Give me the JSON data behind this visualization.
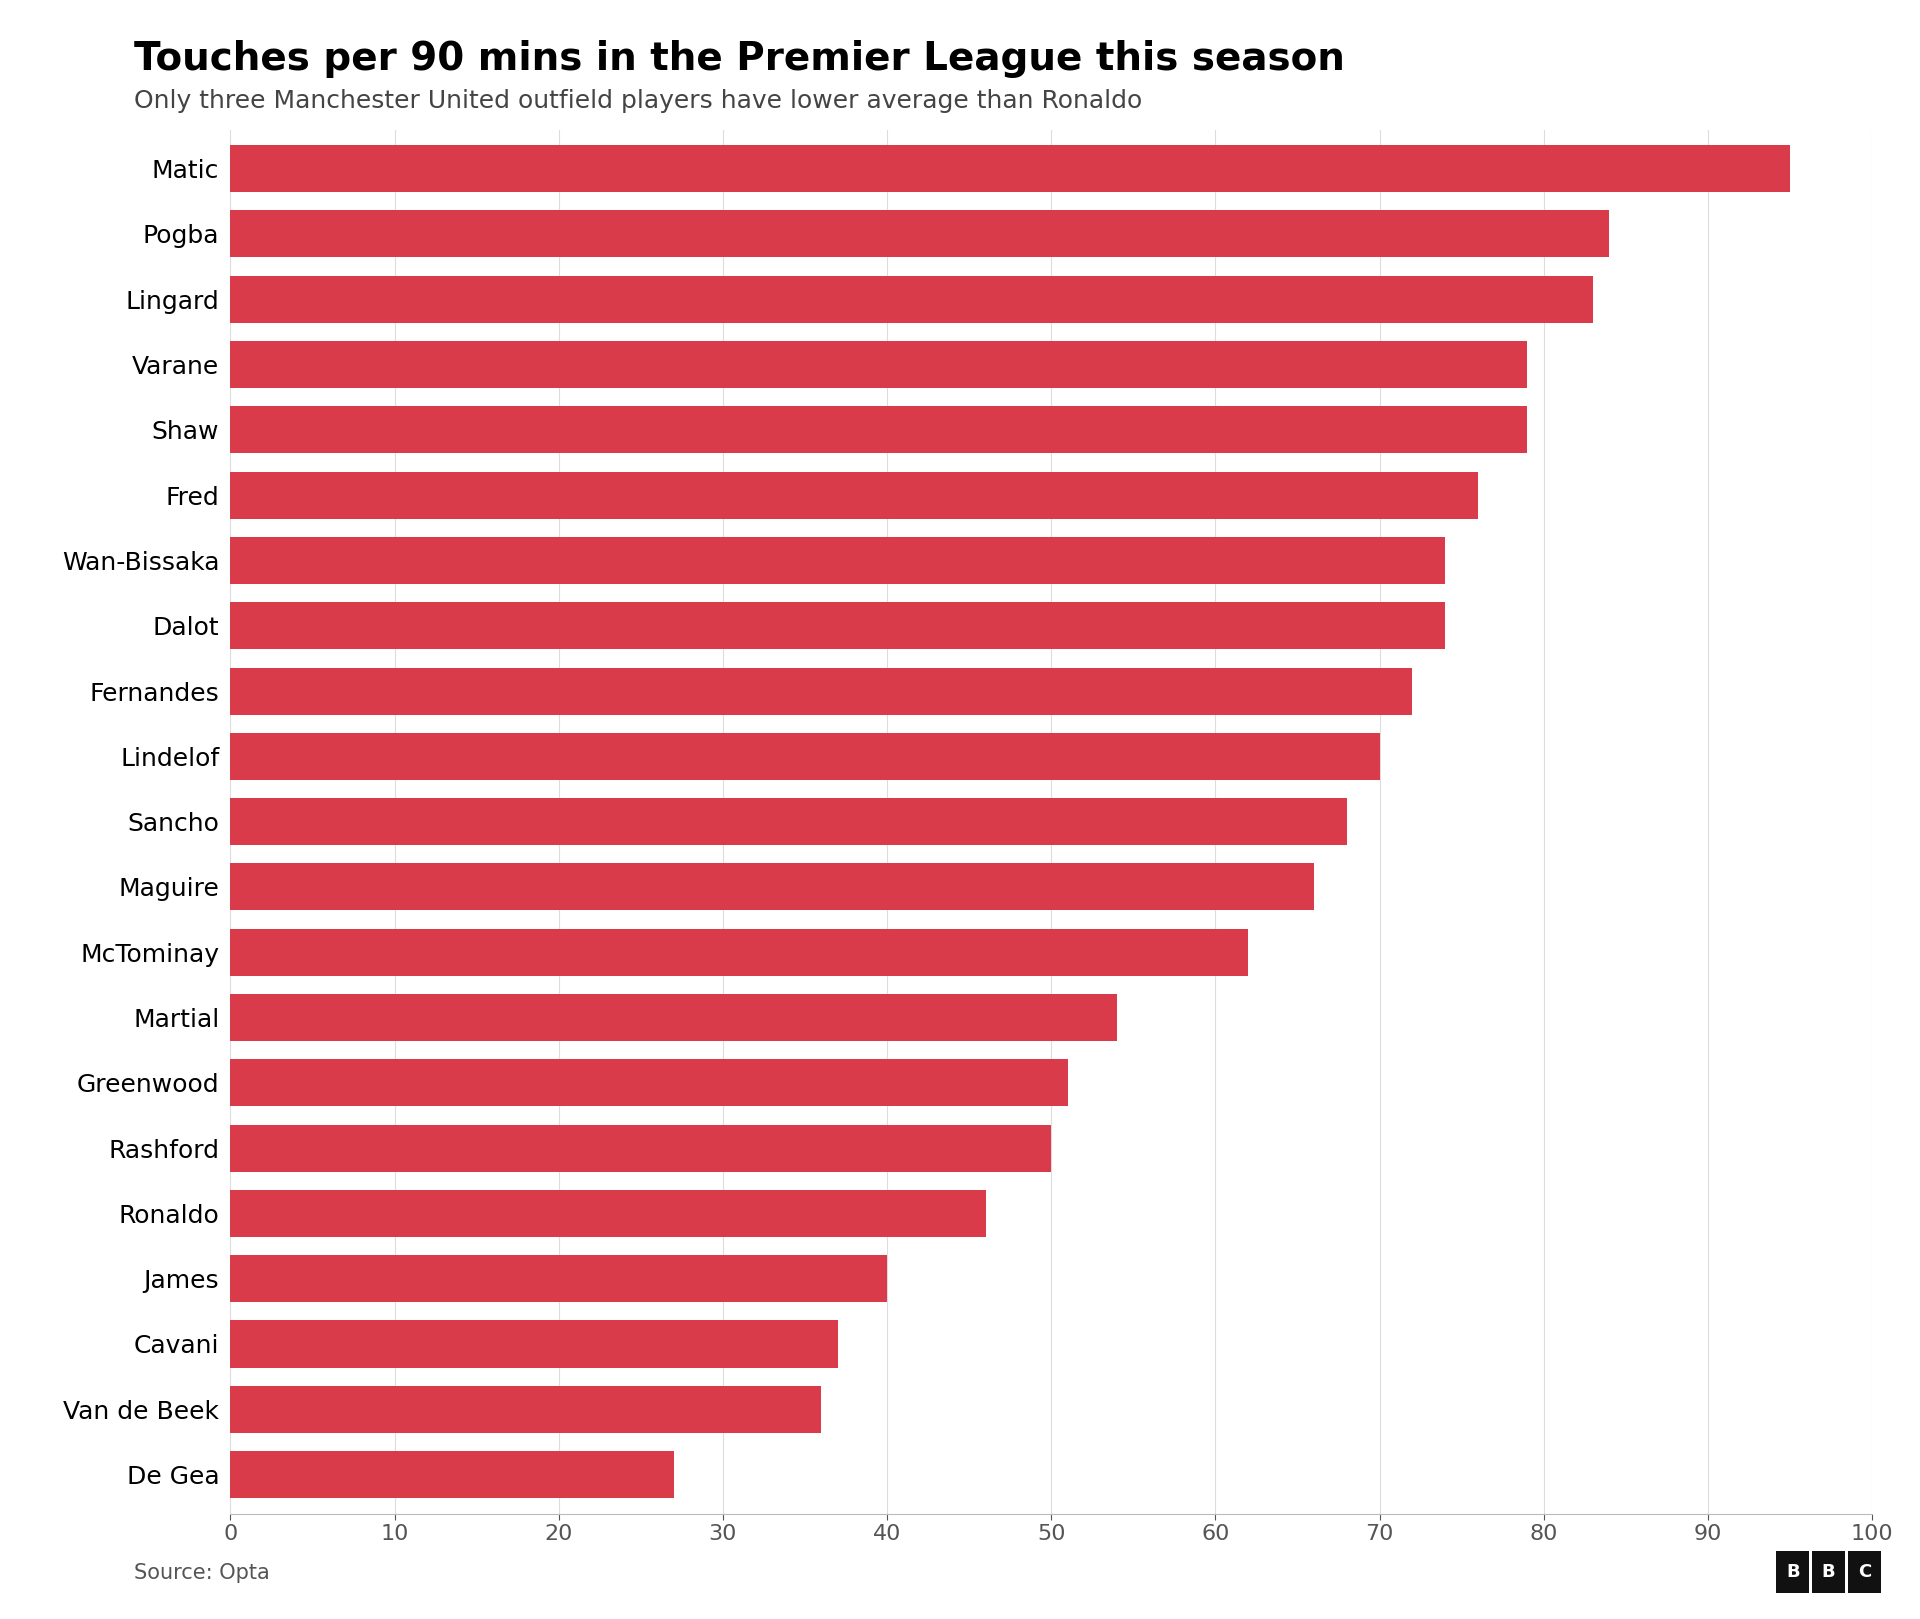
{
  "title": "Touches per 90 mins in the Premier League this season",
  "subtitle": "Only three Manchester United outfield players have lower average than Ronaldo",
  "source": "Source: Opta",
  "players": [
    "Matic",
    "Pogba",
    "Lingard",
    "Varane",
    "Shaw",
    "Fred",
    "Wan-Bissaka",
    "Dalot",
    "Fernandes",
    "Lindelof",
    "Sancho",
    "Maguire",
    "McTominay",
    "Martial",
    "Greenwood",
    "Rashford",
    "Ronaldo",
    "James",
    "Cavani",
    "Van de Beek",
    "De Gea"
  ],
  "values": [
    95,
    84,
    83,
    79,
    79,
    76,
    74,
    74,
    72,
    70,
    68,
    66,
    62,
    54,
    51,
    50,
    46,
    40,
    37,
    36,
    27
  ],
  "bar_color": "#D93B4A",
  "background_color": "#ffffff",
  "xlim": [
    0,
    100
  ],
  "xticks": [
    0,
    10,
    20,
    30,
    40,
    50,
    60,
    70,
    80,
    90,
    100
  ],
  "title_fontsize": 28,
  "subtitle_fontsize": 18,
  "tick_fontsize": 16,
  "label_fontsize": 18,
  "source_fontsize": 15,
  "bar_height": 0.72
}
